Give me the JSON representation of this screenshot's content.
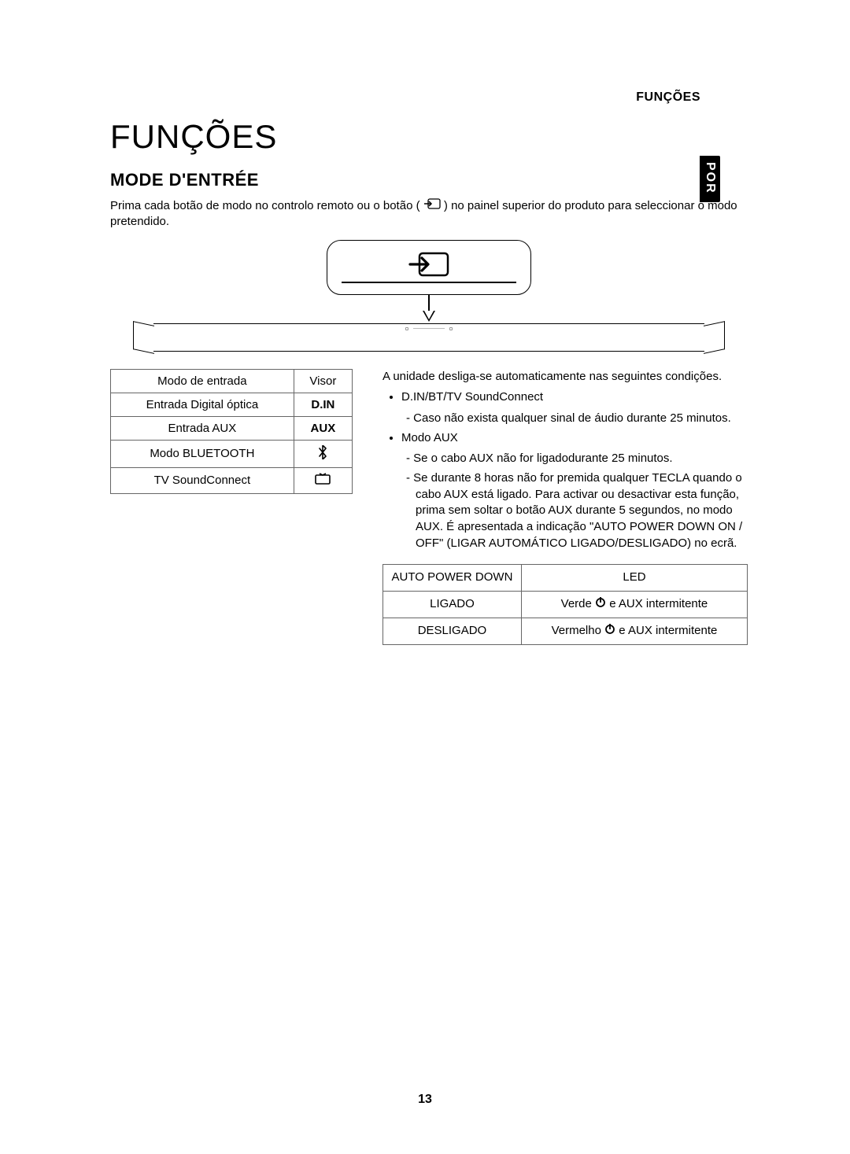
{
  "header_label": "FUNÇÕES",
  "side_tab": "POR",
  "page_title": "FUNÇÕES",
  "section_title": "MODE D'ENTRÉE",
  "intro_before": "Prima cada botão de modo no controlo remoto ou o botão (",
  "intro_after": ") no painel superior do produto para seleccionar o modo pretendido.",
  "mode_table": {
    "header_left": "Modo de entrada",
    "header_right": "Visor",
    "rows": [
      {
        "left": "Entrada Digital óptica",
        "right": "D.IN",
        "right_bold": true,
        "right_icon": null
      },
      {
        "left": "Entrada AUX",
        "right": "AUX",
        "right_bold": true,
        "right_icon": null
      },
      {
        "left": "Modo BLUETOOTH",
        "right": "",
        "right_bold": false,
        "right_icon": "bluetooth"
      },
      {
        "left": "TV SoundConnect",
        "right": "",
        "right_bold": false,
        "right_icon": "tv"
      }
    ]
  },
  "right_intro": "A unidade desliga-se automaticamente nas seguintes condições.",
  "right_list": {
    "item1": "D.IN/BT/TV SoundConnect",
    "item1_sub1": "Caso não exista qualquer sinal de áudio durante 25 minutos.",
    "item2": "Modo AUX",
    "item2_sub1": "Se o cabo AUX não for ligadodurante 25 minutos.",
    "item2_sub2": "Se durante 8 horas não for premida qualquer TECLA quando o cabo AUX está ligado. Para activar ou desactivar esta função, prima sem soltar o botão AUX durante 5 segundos, no modo AUX. É apresentada a indicação \"AUTO POWER DOWN ON / OFF\" (LIGAR AUTOMÁTICO LIGADO/DESLIGADO) no ecrã."
  },
  "led_table": {
    "header_left": "AUTO POWER DOWN",
    "header_right": "LED",
    "row1_left": "LIGADO",
    "row1_right_before": "Verde ",
    "row1_right_after": " e AUX intermitente",
    "row2_left": "DESLIGADO",
    "row2_right_before": "Vermelho ",
    "row2_right_after": " e AUX intermitente"
  },
  "page_number": "13"
}
